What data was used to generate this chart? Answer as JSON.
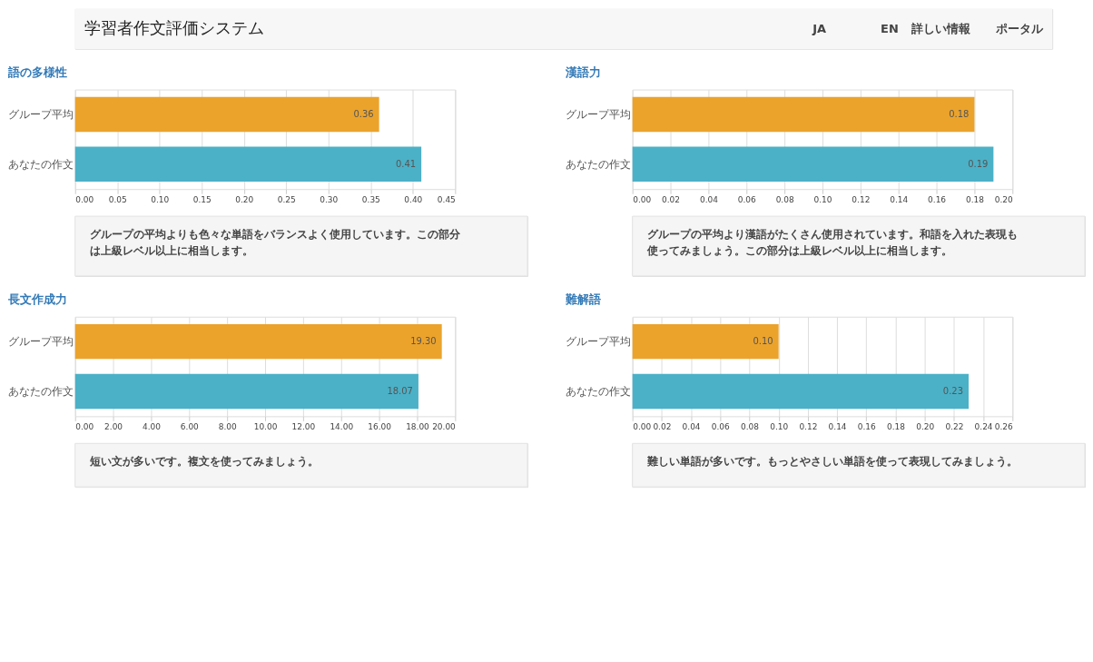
{
  "chart_data": [
    {
      "type": "other",
      "title": "学習者作文評価システム",
      "annotations": [
        "JA",
        "EN",
        "詳しい情報",
        "ポータル"
      ]
    },
    {
      "type": "bar",
      "orientation": "horizontal",
      "title": "語の多様性",
      "categories": [
        "グループ平均",
        "あなたの作文"
      ],
      "values": [
        0.36,
        0.41
      ],
      "colors": [
        "#eba32c",
        "#4bb1c7"
      ],
      "value_labels": [
        "0.36",
        "0.41"
      ],
      "xlim": [
        0,
        0.45
      ],
      "xticks": [
        {
          "value": 0,
          "label": "0.00"
        },
        {
          "value": 0.05,
          "label": "0.05"
        },
        {
          "value": 0.1,
          "label": "0.10"
        },
        {
          "value": 0.15,
          "label": "0.15"
        },
        {
          "value": 0.2,
          "label": "0.20"
        },
        {
          "value": 0.25,
          "label": "0.25"
        },
        {
          "value": 0.3,
          "label": "0.30"
        },
        {
          "value": 0.35,
          "label": "0.35"
        },
        {
          "value": 0.4,
          "label": "0.40"
        },
        {
          "value": 0.45,
          "label": "0.45"
        }
      ],
      "grid": "x",
      "annotations": [
        "グループの平均よりも色々な単語をバランスよく使用しています。この部分は上級レベル以上に相当します。"
      ]
    },
    {
      "type": "bar",
      "orientation": "horizontal",
      "title": "漢語力",
      "categories": [
        "グループ平均",
        "あなたの作文"
      ],
      "values": [
        0.18,
        0.19
      ],
      "colors": [
        "#eba32c",
        "#4bb1c7"
      ],
      "value_labels": [
        "0.18",
        "0.19"
      ],
      "xlim": [
        0,
        0.2
      ],
      "xticks": [
        {
          "value": 0,
          "label": "0.00"
        },
        {
          "value": 0.02,
          "label": "0.02"
        },
        {
          "value": 0.04,
          "label": "0.04"
        },
        {
          "value": 0.06,
          "label": "0.06"
        },
        {
          "value": 0.08,
          "label": "0.08"
        },
        {
          "value": 0.1,
          "label": "0.10"
        },
        {
          "value": 0.12,
          "label": "0.12"
        },
        {
          "value": 0.14,
          "label": "0.14"
        },
        {
          "value": 0.16,
          "label": "0.16"
        },
        {
          "value": 0.18,
          "label": "0.18"
        },
        {
          "value": 0.2,
          "label": "0.20"
        }
      ],
      "grid": "x",
      "annotations": [
        "グループの平均より漢語がたくさん使用されています。和語を入れた表現も使ってみましょう。この部分は上級レベル以上に相当します。"
      ]
    },
    {
      "type": "bar",
      "orientation": "horizontal",
      "title": "長文作成力",
      "categories": [
        "グループ平均",
        "あなたの作文"
      ],
      "values": [
        19.3,
        18.07
      ],
      "colors": [
        "#eba32c",
        "#4bb1c7"
      ],
      "value_labels": [
        "19.30",
        "18.07"
      ],
      "xlim": [
        0,
        20
      ],
      "xticks": [
        {
          "value": 0,
          "label": "0.00"
        },
        {
          "value": 2,
          "label": "2.00"
        },
        {
          "value": 4,
          "label": "4.00"
        },
        {
          "value": 6,
          "label": "6.00"
        },
        {
          "value": 8,
          "label": "8.00"
        },
        {
          "value": 10,
          "label": "10.00"
        },
        {
          "value": 12,
          "label": "12.00"
        },
        {
          "value": 14,
          "label": "14.00"
        },
        {
          "value": 16,
          "label": "16.00"
        },
        {
          "value": 18,
          "label": "18.00"
        },
        {
          "value": 20,
          "label": "20.00"
        }
      ],
      "grid": "x",
      "annotations": [
        "短い文が多いです。複文を使ってみましょう。"
      ]
    },
    {
      "type": "bar",
      "orientation": "horizontal",
      "title": "難解語",
      "categories": [
        "グループ平均",
        "あなたの作文"
      ],
      "values": [
        0.1,
        0.23
      ],
      "colors": [
        "#eba32c",
        "#4bb1c7"
      ],
      "value_labels": [
        "0.10",
        "0.23"
      ],
      "xlim": [
        0,
        0.26
      ],
      "xticks": [
        {
          "value": 0,
          "label": "0.00"
        },
        {
          "value": 0.02,
          "label": "0.02"
        },
        {
          "value": 0.04,
          "label": "0.04"
        },
        {
          "value": 0.06,
          "label": "0.06"
        },
        {
          "value": 0.08,
          "label": "0.08"
        },
        {
          "value": 0.1,
          "label": "0.10"
        },
        {
          "value": 0.12,
          "label": "0.12"
        },
        {
          "value": 0.14,
          "label": "0.14"
        },
        {
          "value": 0.16,
          "label": "0.16"
        },
        {
          "value": 0.18,
          "label": "0.18"
        },
        {
          "value": 0.2,
          "label": "0.20"
        },
        {
          "value": 0.22,
          "label": "0.22"
        },
        {
          "value": 0.24,
          "label": "0.24"
        },
        {
          "value": 0.26,
          "label": "0.26"
        }
      ],
      "grid": "x",
      "annotations": [
        "難しい単語が多いです。もっとやさしい単語を使って表現してみましょう。"
      ]
    }
  ]
}
